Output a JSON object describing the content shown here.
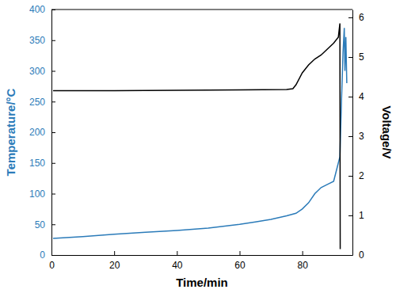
{
  "chart_data": {
    "type": "line",
    "x_label": "Time/min",
    "y_label": "Temperature/°C",
    "y2_label": "Voltage/V",
    "xlim": [
      0,
      96
    ],
    "xticks": [
      0,
      20,
      40,
      60,
      80
    ],
    "ylim": [
      0,
      400
    ],
    "yticks": [
      0,
      50,
      100,
      150,
      200,
      250,
      300,
      350,
      400
    ],
    "y2lim": [
      0,
      6.2
    ],
    "y2ticks": [
      0,
      1,
      2,
      3,
      4,
      5,
      6
    ],
    "series": [
      {
        "name": "Temperature",
        "color": "#2b7bb9",
        "axis": "y",
        "x": [
          0.5,
          10,
          20,
          30,
          40,
          50,
          60,
          65,
          70,
          75,
          78,
          80,
          82,
          84,
          86,
          88,
          90,
          91,
          92,
          92.5,
          93,
          93.4,
          93.6,
          93.9,
          94.2
        ],
        "values": [
          27,
          30,
          34,
          37,
          40,
          44,
          50,
          54,
          58,
          64,
          68,
          75,
          85,
          100,
          110,
          115,
          120,
          140,
          160,
          250,
          330,
          370,
          300,
          355,
          280
        ]
      },
      {
        "name": "Voltage",
        "color": "#000000",
        "axis": "y2",
        "x": [
          0.5,
          20,
          40,
          60,
          75,
          77,
          78,
          80,
          82,
          84,
          86,
          88,
          90,
          91.5,
          92,
          92.1
        ],
        "values": [
          4.15,
          4.15,
          4.16,
          4.17,
          4.18,
          4.2,
          4.3,
          4.6,
          4.8,
          4.95,
          5.05,
          5.2,
          5.35,
          5.5,
          5.85,
          0.15
        ]
      }
    ]
  }
}
